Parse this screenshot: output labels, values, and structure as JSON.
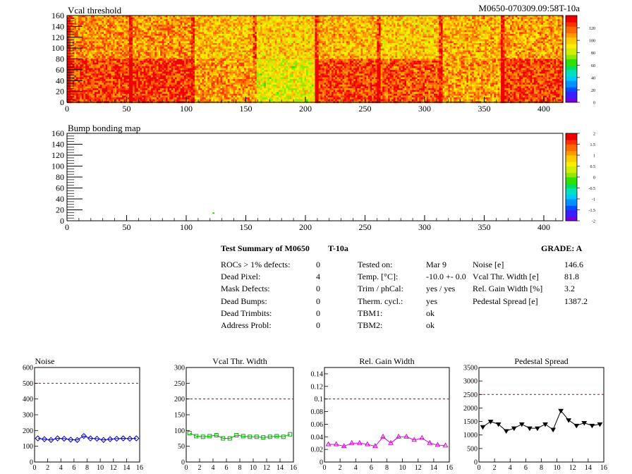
{
  "header": {
    "left_title": "Vcal threshold",
    "right_title": "M0650-070309.09:58T-10a"
  },
  "maps": [
    {
      "title": "Vcal threshold",
      "x_ticks": [
        "0",
        "50",
        "100",
        "150",
        "200",
        "250",
        "300",
        "350",
        "400"
      ],
      "x_range": [
        0,
        416
      ],
      "y_ticks": [
        "0",
        "20",
        "40",
        "60",
        "80",
        "100",
        "120",
        "140",
        "160"
      ],
      "y_range": [
        0,
        160
      ],
      "z_ticks": [
        "0",
        "20",
        "40",
        "60",
        "80",
        "100",
        "120"
      ],
      "z_range": [
        0,
        140
      ],
      "roc_means_top": [
        112,
        110,
        103,
        98,
        104,
        100,
        105,
        108
      ],
      "roc_means_bottom": [
        125,
        127,
        110,
        88,
        124,
        122,
        108,
        124
      ]
    },
    {
      "title": "Bump bonding map",
      "x_ticks": [
        "0",
        "50",
        "100",
        "150",
        "200",
        "250",
        "300",
        "350",
        "400"
      ],
      "x_range": [
        0,
        416
      ],
      "y_ticks": [
        "0",
        "20",
        "40",
        "60",
        "80",
        "100",
        "120",
        "140",
        "160"
      ],
      "y_range": [
        0,
        160
      ],
      "z_ticks": [
        "-2",
        "-1.5",
        "-1",
        "-0.5",
        "0",
        "0.5",
        "1",
        "1.5",
        "2"
      ],
      "z_range": [
        -2,
        2
      ],
      "marked_pixel": {
        "x": 122,
        "y": 14
      }
    }
  ],
  "summary": {
    "title": "Test Summary of M0650",
    "temp_label": "T-10a",
    "grade": "GRADE:  A",
    "col1": [
      {
        "label": "ROCs > 1% defects:",
        "value": "0"
      },
      {
        "label": "Dead Pixel:",
        "value": "4"
      },
      {
        "label": "Mask Defects:",
        "value": "0"
      },
      {
        "label": "Dead Bumps:",
        "value": "0"
      },
      {
        "label": "Dead Trimbits:",
        "value": "0"
      },
      {
        "label": "Address Probl:",
        "value": "0"
      }
    ],
    "col2": [
      {
        "label": "Tested on:",
        "value": "Mar 9"
      },
      {
        "label": "Temp. [°C]:",
        "value": "-10.0 +- 0.0"
      },
      {
        "label": "Trim / phCal:",
        "value": "yes / yes"
      },
      {
        "label": "Therm. cycl.:",
        "value": "yes"
      },
      {
        "label": "TBM1:",
        "value": "ok"
      },
      {
        "label": "TBM2:",
        "value": "ok"
      }
    ],
    "col3": [
      {
        "label": "Noise [e]",
        "value": "146.6"
      },
      {
        "label": "Vcal Thr. Width [e]",
        "value": "81.8"
      },
      {
        "label": "Rel. Gain Width [%]",
        "value": "3.2"
      },
      {
        "label": "Pedestal Spread [e]",
        "value": "1387.2"
      }
    ]
  },
  "chart_data": [
    {
      "type": "line",
      "title": "Noise",
      "color": "#0000cc",
      "marker": "diamond",
      "x": [
        0,
        1,
        2,
        3,
        4,
        5,
        6,
        7,
        8,
        9,
        10,
        11,
        12,
        13,
        14,
        15
      ],
      "values": [
        150,
        145,
        140,
        150,
        148,
        142,
        140,
        165,
        150,
        148,
        140,
        145,
        148,
        150,
        148,
        150
      ],
      "xlim": [
        0,
        16
      ],
      "ylim": [
        0,
        600
      ],
      "limit": 500,
      "x_ticks": [
        "0",
        "2",
        "4",
        "6",
        "8",
        "10",
        "12",
        "14",
        "16"
      ],
      "y_ticks": [
        "0",
        "100",
        "200",
        "300",
        "400",
        "500",
        "600"
      ]
    },
    {
      "type": "line",
      "title": "Vcal Thr. Width",
      "color": "#00aa00",
      "marker": "square",
      "x": [
        0,
        1,
        2,
        3,
        4,
        5,
        6,
        7,
        8,
        9,
        10,
        11,
        12,
        13,
        14,
        15
      ],
      "values": [
        92,
        82,
        80,
        82,
        85,
        75,
        75,
        85,
        82,
        80,
        80,
        78,
        80,
        82,
        80,
        88
      ],
      "xlim": [
        0,
        16
      ],
      "ylim": [
        0,
        300
      ],
      "limit": 200,
      "x_ticks": [
        "0",
        "2",
        "4",
        "6",
        "8",
        "10",
        "12",
        "14",
        "16"
      ],
      "y_ticks": [
        "0",
        "50",
        "100",
        "150",
        "200",
        "250",
        "300"
      ]
    },
    {
      "type": "line",
      "title": "Rel. Gain Width",
      "color": "#dd00dd",
      "marker": "triangle",
      "x": [
        0,
        1,
        2,
        3,
        4,
        5,
        6,
        7,
        8,
        9,
        10,
        11,
        12,
        13,
        14,
        15
      ],
      "values": [
        0.028,
        0.028,
        0.025,
        0.03,
        0.03,
        0.028,
        0.025,
        0.04,
        0.03,
        0.04,
        0.04,
        0.035,
        0.038,
        0.03,
        0.027,
        0.026
      ],
      "xlim": [
        0,
        16
      ],
      "ylim": [
        0,
        0.15
      ],
      "limit": 0.1,
      "x_ticks": [
        "0",
        "2",
        "4",
        "6",
        "8",
        "10",
        "12",
        "14",
        "16"
      ],
      "y_ticks": [
        "0",
        "0.02",
        "0.04",
        "0.06",
        "0.08",
        "0.1",
        "0.12",
        "0.14"
      ]
    },
    {
      "type": "line",
      "title": "Pedestal Spread",
      "color": "#000000",
      "marker": "triangle-down",
      "x": [
        0,
        1,
        2,
        3,
        4,
        5,
        6,
        7,
        8,
        9,
        10,
        11,
        12,
        13,
        14,
        15
      ],
      "values": [
        1300,
        1500,
        1400,
        1150,
        1250,
        1400,
        1250,
        1250,
        1400,
        1200,
        1900,
        1550,
        1350,
        1450,
        1350,
        1400
      ],
      "xlim": [
        0,
        16
      ],
      "ylim": [
        0,
        3500
      ],
      "limit": 2500,
      "x_ticks": [
        "0",
        "2",
        "4",
        "6",
        "8",
        "10",
        "12",
        "14",
        "16"
      ],
      "y_ticks": [
        "0",
        "500",
        "1000",
        "1500",
        "2000",
        "2500",
        "3000",
        "3500"
      ]
    }
  ]
}
